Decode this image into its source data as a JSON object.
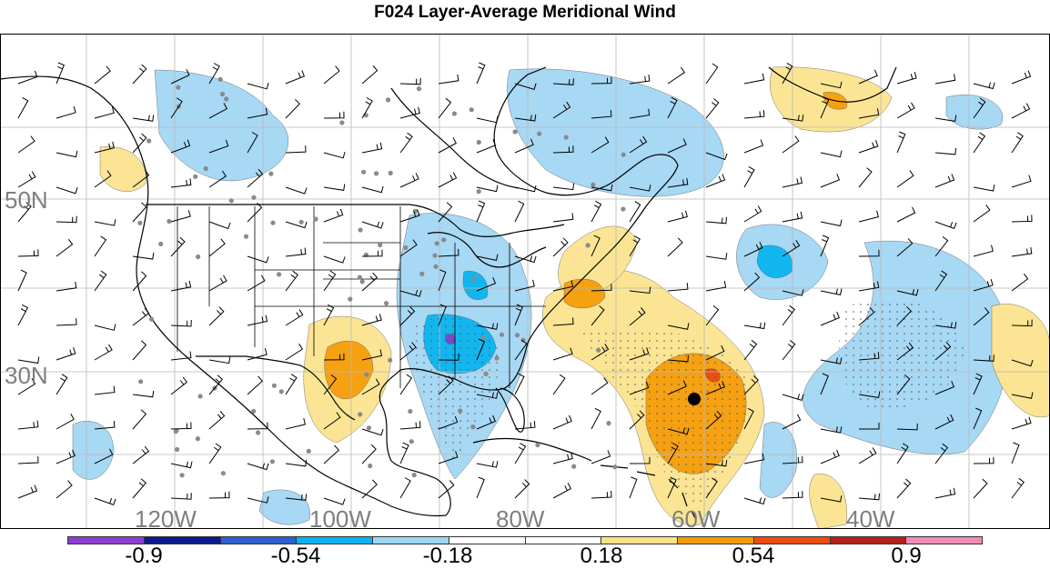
{
  "title": "F024 Layer-Average Meridional Wind",
  "map": {
    "lat_labels": [
      "50N",
      "30N"
    ],
    "lon_labels": [
      "120W",
      "100W",
      "80W",
      "60W",
      "40W"
    ]
  },
  "colorbar": {
    "colors": [
      "#8b3fd0",
      "#0c1a8f",
      "#2f5fd0",
      "#0ab4f0",
      "#9dd6f4",
      "#ffffff",
      "#ffffff",
      "#f9e38a",
      "#f59c0a",
      "#ee4d12",
      "#b3211b",
      "#f08cb6"
    ],
    "labels": [
      "-0.9",
      "-0.54",
      "-0.18",
      "0.18",
      "0.54",
      "0.9"
    ]
  },
  "colors": {
    "land_outline": "#000000",
    "grid": "#b8b8b8",
    "label_gray": "#7f7f7f",
    "light_blue": "#a7d8f4",
    "mid_blue": "#12b6ef",
    "light_yellow": "#fbe594",
    "orange": "#f5a112",
    "red_orange": "#ee4d12",
    "purple": "#7d47c9",
    "dot_gray": "#8a8a8a"
  }
}
